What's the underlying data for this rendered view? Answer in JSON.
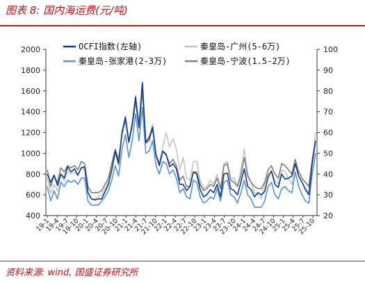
{
  "figure": {
    "title": "图表 8:  国内海运费(元/吨)",
    "source": "资料来源:  wind,  国盛证券研究所"
  },
  "colors": {
    "ocfi": "#0e3a8c",
    "guangzhou": "#c4c4c4",
    "zhangjiagang": "#5b8fd6",
    "ningbo": "#7d7d7d",
    "accent": "#c0121a"
  },
  "chart_data": {
    "type": "line",
    "x_labels": [
      "19-1",
      "19-4",
      "19-7",
      "19-10",
      "20-1",
      "20-4",
      "20-7",
      "20-10",
      "21-1",
      "21-4",
      "21-7",
      "21-10",
      "22-1",
      "22-4",
      "22-7",
      "22-10",
      "23-1",
      "23-4",
      "23-7",
      "23-10",
      "24-1",
      "24-4",
      "24-7",
      "24-10",
      "25-1",
      "25-4",
      "25-7",
      "25-10"
    ],
    "y_left": {
      "min": 400,
      "max": 2000,
      "ticks": [
        400,
        600,
        800,
        1000,
        1200,
        1400,
        1600,
        1800,
        2000
      ]
    },
    "y_right": {
      "min": 20,
      "max": 100,
      "ticks": [
        20,
        30,
        40,
        50,
        60,
        70,
        80,
        90,
        100
      ]
    },
    "grid": false,
    "legend_position": "top",
    "series": [
      {
        "name": "OCFI指数(左轴)",
        "axis": "left",
        "color_key": "ocfi",
        "values": [
          800,
          720,
          790,
          690,
          800,
          760,
          870,
          820,
          850,
          790,
          860,
          870,
          620,
          560,
          550,
          560,
          560,
          630,
          700,
          840,
          1020,
          900,
          1200,
          1350,
          1110,
          1280,
          1540,
          1250,
          1680,
          1100,
          1150,
          1250,
          980,
          880,
          1020,
          990,
          870,
          900,
          850,
          700,
          700,
          640,
          680,
          820,
          800,
          650,
          580,
          600,
          650,
          620,
          700,
          580,
          800,
          810,
          660,
          640,
          600,
          720,
          850,
          680,
          650,
          580,
          620,
          600,
          630,
          770,
          830,
          700,
          670,
          800,
          750,
          760,
          780,
          900,
          780,
          720,
          650,
          600,
          900,
          1120
        ]
      },
      {
        "name": "秦皇岛-广州(5-6万)",
        "axis": "right",
        "color_key": "guangzhou",
        "values": [
          38,
          31,
          35,
          32,
          40,
          37,
          41,
          40,
          41,
          39,
          43,
          42,
          31,
          28,
          28,
          29,
          30,
          33,
          36,
          42,
          50,
          44,
          60,
          67,
          55,
          65,
          78,
          64,
          84,
          56,
          58,
          64,
          50,
          45,
          53,
          60,
          53,
          57,
          52,
          42,
          48,
          38,
          37,
          46,
          46,
          37,
          33,
          34,
          37,
          35,
          40,
          33,
          45,
          46,
          38,
          38,
          34,
          42,
          52,
          40,
          36,
          31,
          30,
          28,
          35,
          40,
          41,
          37,
          35,
          42,
          41,
          38,
          35,
          45,
          39,
          36,
          33,
          31,
          45,
          60
        ]
      },
      {
        "name": "秦皇岛-张家港(2-3万)",
        "axis": "right",
        "color_key": "zhangjiagang",
        "values": [
          34,
          27,
          32,
          28,
          36,
          34,
          37,
          36,
          37,
          35,
          38,
          38,
          27,
          25,
          25,
          25,
          27,
          29,
          32,
          37,
          44,
          39,
          52,
          59,
          48,
          56,
          69,
          56,
          72,
          50,
          51,
          56,
          44,
          40,
          46,
          45,
          40,
          42,
          38,
          31,
          33,
          29,
          28,
          37,
          36,
          29,
          26,
          27,
          29,
          28,
          33,
          27,
          36,
          37,
          30,
          29,
          26,
          31,
          37,
          30,
          28,
          24,
          24,
          24,
          27,
          34,
          36,
          30,
          28,
          33,
          34,
          32,
          31,
          41,
          34,
          30,
          27,
          26,
          40,
          50
        ]
      },
      {
        "name": "秦皇岛-宁波(1.5-2万)",
        "axis": "right",
        "color_key": "ningbo",
        "values": [
          42,
          34,
          39,
          36,
          43,
          41,
          44,
          43,
          44,
          42,
          46,
          45,
          34,
          31,
          31,
          31,
          32,
          35,
          38,
          45,
          52,
          47,
          59,
          66,
          55,
          63,
          75,
          62,
          80,
          55,
          56,
          62,
          49,
          45,
          51,
          49,
          45,
          47,
          44,
          37,
          39,
          34,
          34,
          41,
          41,
          35,
          32,
          33,
          35,
          34,
          38,
          33,
          44,
          45,
          37,
          36,
          34,
          39,
          48,
          39,
          36,
          34,
          33,
          33,
          36,
          42,
          44,
          40,
          38,
          45,
          44,
          42,
          40,
          47,
          41,
          38,
          36,
          34,
          47,
          56
        ]
      }
    ]
  }
}
